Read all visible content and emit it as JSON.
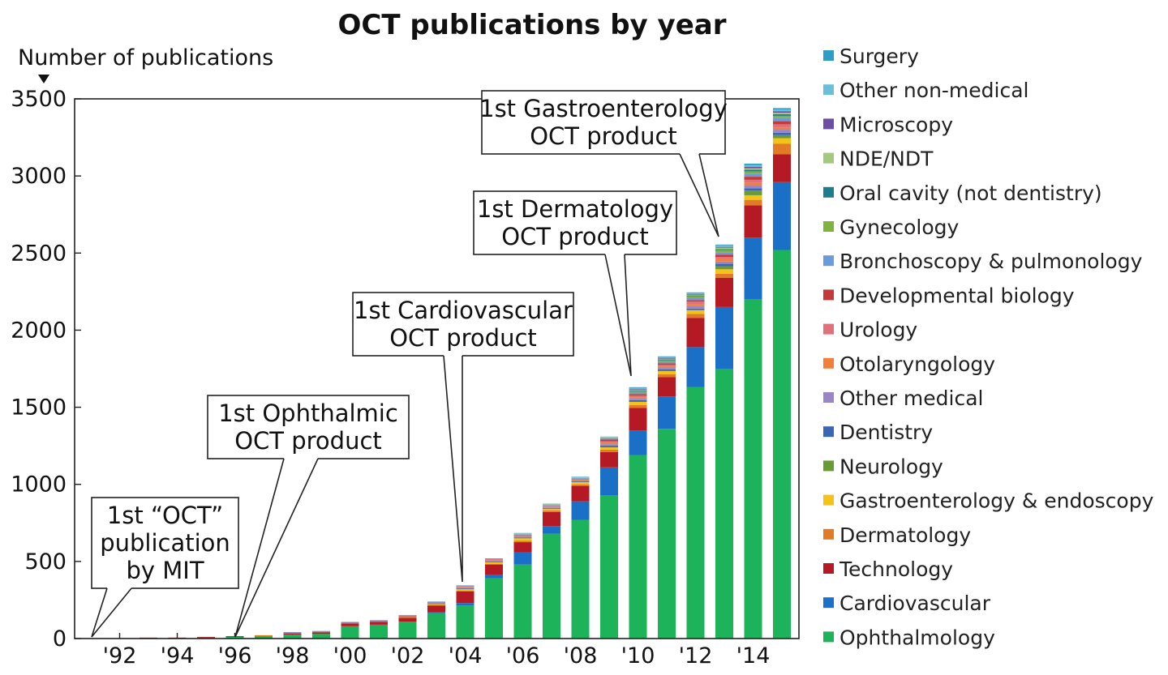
{
  "chart_data": {
    "type": "bar",
    "stacked": true,
    "title": "OCT publications by year",
    "ylabel": "Number of publications",
    "xlabel": "",
    "ylim": [
      0,
      3500
    ],
    "yticks": [
      0,
      500,
      1000,
      1500,
      2000,
      2500,
      3000,
      3500
    ],
    "categories": [
      "1991",
      "1992",
      "1993",
      "1994",
      "1995",
      "1996",
      "1997",
      "1998",
      "1999",
      "2000",
      "2001",
      "2002",
      "2003",
      "2004",
      "2005",
      "2006",
      "2007",
      "2008",
      "2009",
      "2010",
      "2011",
      "2012",
      "2013",
      "2014",
      "2015"
    ],
    "xtick_labels": [
      "'92",
      "'94",
      "'96",
      "'98",
      "'00",
      "'02",
      "'04",
      "'06",
      "'08",
      "'10",
      "'12",
      "'14"
    ],
    "xtick_years": [
      "1992",
      "1994",
      "1996",
      "1998",
      "2000",
      "2002",
      "2004",
      "2006",
      "2008",
      "2010",
      "2012",
      "2014"
    ],
    "legend_position": "right",
    "series": [
      {
        "name": "Ophthalmology",
        "color": "#1cb35a",
        "values": [
          0,
          0,
          4,
          4,
          8,
          12,
          15,
          25,
          30,
          80,
          90,
          110,
          165,
          215,
          390,
          480,
          680,
          770,
          930,
          1190,
          1360,
          1630,
          1750,
          2200,
          2520
        ]
      },
      {
        "name": "Cardiovascular",
        "color": "#1a6fc7",
        "values": [
          0,
          0,
          0,
          0,
          0,
          0,
          0,
          0,
          0,
          0,
          0,
          0,
          5,
          15,
          25,
          80,
          50,
          120,
          180,
          160,
          210,
          260,
          400,
          400,
          440
        ]
      },
      {
        "name": "Technology",
        "color": "#b51a24",
        "values": [
          0,
          0,
          2,
          2,
          2,
          4,
          6,
          10,
          12,
          18,
          18,
          25,
          45,
          75,
          65,
          65,
          90,
          100,
          100,
          145,
          125,
          190,
          190,
          210,
          180
        ]
      },
      {
        "name": "Dermatology",
        "color": "#e27b25",
        "values": [
          0,
          0,
          0,
          0,
          0,
          0,
          0,
          0,
          0,
          0,
          0,
          0,
          0,
          5,
          5,
          10,
          10,
          10,
          15,
          20,
          20,
          25,
          25,
          35,
          70
        ]
      },
      {
        "name": "Gastroenterology & endoscopy",
        "color": "#f5c21a",
        "values": [
          0,
          0,
          0,
          0,
          0,
          0,
          1,
          2,
          2,
          3,
          4,
          5,
          8,
          10,
          10,
          15,
          10,
          15,
          15,
          20,
          20,
          25,
          30,
          30,
          35
        ]
      },
      {
        "name": "Neurology",
        "color": "#6a9a35",
        "values": [
          0,
          0,
          0,
          0,
          0,
          0,
          0,
          0,
          0,
          0,
          0,
          0,
          0,
          0,
          0,
          0,
          0,
          0,
          0,
          0,
          0,
          0,
          20,
          30,
          20
        ]
      },
      {
        "name": "Dentistry",
        "color": "#3a66b5",
        "values": [
          0,
          0,
          0,
          0,
          0,
          0,
          0,
          1,
          1,
          2,
          2,
          3,
          4,
          5,
          5,
          5,
          5,
          5,
          10,
          10,
          10,
          10,
          15,
          15,
          15
        ]
      },
      {
        "name": "Other medical",
        "color": "#9a86c4",
        "values": [
          0,
          0,
          0,
          0,
          0,
          0,
          0,
          1,
          1,
          2,
          2,
          3,
          4,
          5,
          5,
          5,
          5,
          5,
          10,
          10,
          10,
          15,
          15,
          20,
          20
        ]
      },
      {
        "name": "Otolaryngology",
        "color": "#f07f3a",
        "values": [
          0,
          0,
          0,
          0,
          0,
          0,
          0,
          1,
          1,
          1,
          1,
          2,
          3,
          5,
          5,
          5,
          5,
          5,
          10,
          10,
          10,
          15,
          15,
          15,
          15
        ]
      },
      {
        "name": "Urology",
        "color": "#e0707a",
        "values": [
          0,
          0,
          0,
          0,
          0,
          0,
          0,
          1,
          1,
          1,
          1,
          2,
          3,
          5,
          5,
          5,
          5,
          5,
          10,
          10,
          10,
          15,
          15,
          20,
          20
        ]
      },
      {
        "name": "Developmental biology",
        "color": "#c43a3a",
        "values": [
          0,
          0,
          0,
          0,
          0,
          0,
          0,
          0,
          0,
          0,
          0,
          0,
          0,
          0,
          0,
          0,
          0,
          0,
          10,
          10,
          10,
          10,
          15,
          20,
          20
        ]
      },
      {
        "name": "Bronchoscopy & pulmonology",
        "color": "#6d9ad9",
        "values": [
          0,
          0,
          0,
          0,
          0,
          0,
          0,
          1,
          1,
          1,
          1,
          2,
          3,
          5,
          5,
          5,
          5,
          5,
          10,
          10,
          10,
          15,
          15,
          20,
          20
        ]
      },
      {
        "name": "Gynecology",
        "color": "#7fb33e",
        "values": [
          0,
          0,
          0,
          0,
          0,
          0,
          0,
          0,
          0,
          0,
          0,
          0,
          0,
          0,
          0,
          0,
          0,
          0,
          0,
          10,
          10,
          10,
          15,
          15,
          15
        ]
      },
      {
        "name": "Oral cavity (not dentistry)",
        "color": "#1e7d8c",
        "values": [
          0,
          0,
          0,
          0,
          0,
          0,
          0,
          0,
          0,
          0,
          0,
          0,
          0,
          0,
          0,
          0,
          0,
          0,
          0,
          5,
          5,
          5,
          5,
          10,
          10
        ]
      },
      {
        "name": "NDE/NDT",
        "color": "#a3c97f",
        "values": [
          0,
          0,
          0,
          0,
          0,
          0,
          0,
          0,
          0,
          0,
          0,
          0,
          0,
          0,
          0,
          5,
          5,
          5,
          5,
          5,
          5,
          5,
          10,
          10,
          10
        ]
      },
      {
        "name": "Microscopy",
        "color": "#6b4ea3",
        "values": [
          0,
          0,
          0,
          0,
          0,
          0,
          0,
          0,
          0,
          0,
          0,
          0,
          0,
          0,
          0,
          0,
          0,
          0,
          0,
          5,
          5,
          5,
          5,
          10,
          10
        ]
      },
      {
        "name": "Other non-medical",
        "color": "#6bbfd9",
        "values": [
          0,
          0,
          0,
          0,
          0,
          0,
          0,
          0,
          0,
          0,
          0,
          0,
          0,
          0,
          0,
          5,
          5,
          5,
          5,
          5,
          5,
          5,
          10,
          10,
          10
        ]
      },
      {
        "name": "Surgery",
        "color": "#2e9ec4",
        "values": [
          0,
          0,
          0,
          0,
          0,
          0,
          0,
          0,
          0,
          0,
          0,
          0,
          0,
          0,
          0,
          0,
          0,
          0,
          0,
          5,
          5,
          5,
          5,
          10,
          10
        ]
      }
    ],
    "legend_order": [
      "Surgery",
      "Other non-medical",
      "Microscopy",
      "NDE/NDT",
      "Oral cavity (not dentistry)",
      "Gynecology",
      "Bronchoscopy & pulmonology",
      "Developmental biology",
      "Urology",
      "Otolaryngology",
      "Other medical",
      "Dentistry",
      "Neurology",
      "Gastroenterology & endoscopy",
      "Dermatology",
      "Technology",
      "Cardiovascular",
      "Ophthalmology"
    ],
    "annotations": [
      {
        "lines": [
          "1st “OCT”",
          "publication",
          "by MIT"
        ],
        "year": "1991",
        "value": 0
      },
      {
        "lines": [
          "1st Ophthalmic",
          "OCT product"
        ],
        "year": "1996",
        "value": 15
      },
      {
        "lines": [
          "1st Cardiovascular",
          "OCT product"
        ],
        "year": "2004",
        "value": 360
      },
      {
        "lines": [
          "1st Dermatology",
          "OCT product"
        ],
        "year": "2010",
        "value": 1640
      },
      {
        "lines": [
          "1st Gastroenterology",
          "OCT product"
        ],
        "year": "2013",
        "value": 2560
      }
    ]
  }
}
